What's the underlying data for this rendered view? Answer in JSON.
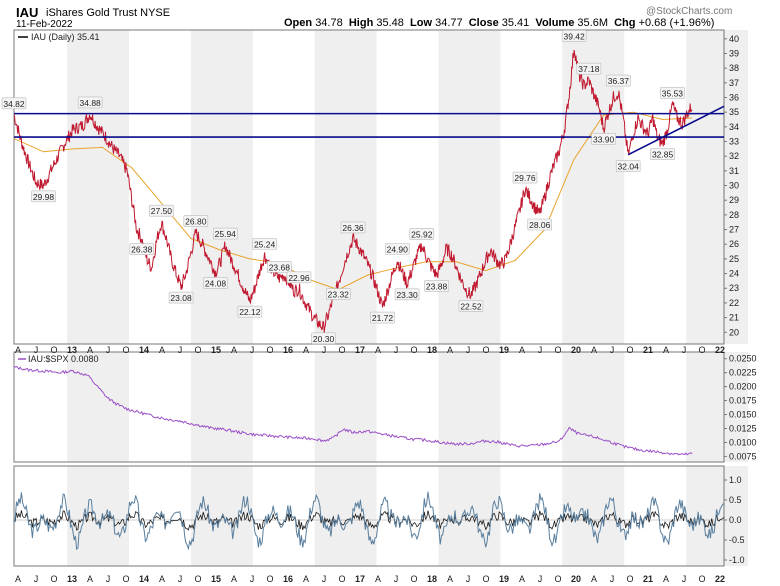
{
  "header": {
    "symbol": "IAU",
    "name": "iShares Gold Trust",
    "exchange": "NYSE",
    "date": "11-Feb-2022",
    "watermark": "@StockCharts.com",
    "open_label": "Open",
    "open": "34.78",
    "high_label": "High",
    "high": "35.48",
    "low_label": "Low",
    "low": "34.77",
    "close_label": "Close",
    "close": "35.41",
    "volume_label": "Volume",
    "volume": "35.6M",
    "chg_label": "Chg",
    "chg": "+0.68 (+1.96%)"
  },
  "chart_data": [
    {
      "type": "line",
      "panel": "price",
      "legend": "IAU (Daily) 35.41",
      "ylim": [
        19.2,
        40.6
      ],
      "y_ticks": [
        20,
        21,
        22,
        23,
        24,
        25,
        26,
        27,
        28,
        29,
        30,
        31,
        32,
        33,
        34,
        35,
        36,
        37,
        38,
        39,
        40
      ],
      "x_ticks": [
        "A",
        "J",
        "O",
        "13",
        "A",
        "J",
        "O",
        "14",
        "A",
        "J",
        "O",
        "15",
        "A",
        "J",
        "O",
        "16",
        "A",
        "J",
        "O",
        "17",
        "A",
        "J",
        "O",
        "18",
        "A",
        "J",
        "O",
        "19",
        "A",
        "J",
        "O",
        "20",
        "A",
        "J",
        "O",
        "21",
        "A",
        "J",
        "O",
        "22"
      ],
      "price_series": [
        [
          0,
          34.82
        ],
        [
          3,
          33
        ],
        [
          6,
          31.5
        ],
        [
          9,
          30.2
        ],
        [
          12,
          29.98
        ],
        [
          15,
          31
        ],
        [
          18,
          32
        ],
        [
          21,
          33
        ],
        [
          24,
          33.8
        ],
        [
          28,
          34.1
        ],
        [
          31,
          34.88
        ],
        [
          34,
          34
        ],
        [
          37,
          33.4
        ],
        [
          40,
          32.6
        ],
        [
          43,
          32
        ],
        [
          46,
          31
        ],
        [
          48,
          29
        ],
        [
          50,
          27
        ],
        [
          52,
          26.38
        ],
        [
          54,
          25
        ],
        [
          56,
          24.4
        ],
        [
          58,
          26.2
        ],
        [
          60,
          27.5
        ],
        [
          62,
          26.4
        ],
        [
          64,
          25
        ],
        [
          66,
          24
        ],
        [
          68,
          23.08
        ],
        [
          70,
          24
        ],
        [
          72,
          25.4
        ],
        [
          74,
          26.8
        ],
        [
          76,
          26.2
        ],
        [
          78,
          25.5
        ],
        [
          80,
          24.8
        ],
        [
          82,
          24.08
        ],
        [
          84,
          24.8
        ],
        [
          86,
          25.94
        ],
        [
          88,
          25.1
        ],
        [
          90,
          24.4
        ],
        [
          92,
          23.6
        ],
        [
          94,
          22.8
        ],
        [
          96,
          22.12
        ],
        [
          98,
          23
        ],
        [
          100,
          24.2
        ],
        [
          102,
          25.24
        ],
        [
          104,
          24.6
        ],
        [
          106,
          24
        ],
        [
          108,
          23.68
        ],
        [
          110,
          23.9
        ],
        [
          112,
          23.4
        ],
        [
          114,
          22.8
        ],
        [
          116,
          22.96
        ],
        [
          118,
          22.2
        ],
        [
          120,
          21.6
        ],
        [
          122,
          21
        ],
        [
          124,
          20.6
        ],
        [
          126,
          20.3
        ],
        [
          128,
          21.2
        ],
        [
          130,
          22.3
        ],
        [
          132,
          23.32
        ],
        [
          134,
          24.5
        ],
        [
          136,
          25.5
        ],
        [
          138,
          26.36
        ],
        [
          140,
          25.9
        ],
        [
          142,
          25.3
        ],
        [
          144,
          24.6
        ],
        [
          146,
          23.8
        ],
        [
          148,
          22.8
        ],
        [
          150,
          21.72
        ],
        [
          152,
          22.8
        ],
        [
          154,
          23.9
        ],
        [
          156,
          24.9
        ],
        [
          158,
          24.1
        ],
        [
          160,
          23.3
        ],
        [
          162,
          24.2
        ],
        [
          164,
          25.2
        ],
        [
          166,
          25.92
        ],
        [
          168,
          25.1
        ],
        [
          170,
          24.4
        ],
        [
          172,
          23.88
        ],
        [
          174,
          24.6
        ],
        [
          176,
          25.7
        ],
        [
          178,
          25.3
        ],
        [
          180,
          24.5
        ],
        [
          182,
          23.6
        ],
        [
          184,
          22.9
        ],
        [
          186,
          22.52
        ],
        [
          188,
          23.2
        ],
        [
          190,
          24
        ],
        [
          192,
          24.9
        ],
        [
          194,
          25.6
        ],
        [
          196,
          25
        ],
        [
          198,
          24.6
        ],
        [
          200,
          24.9
        ],
        [
          202,
          26
        ],
        [
          204,
          27.2
        ],
        [
          206,
          28.4
        ],
        [
          208,
          29.76
        ],
        [
          210,
          29.2
        ],
        [
          212,
          28.5
        ],
        [
          214,
          28.06
        ],
        [
          216,
          29.2
        ],
        [
          218,
          30.5
        ],
        [
          220,
          31.5
        ],
        [
          222,
          32.4
        ],
        [
          224,
          33.8
        ],
        [
          226,
          36.2
        ],
        [
          228,
          39.42
        ],
        [
          230,
          37.5
        ],
        [
          232,
          36.8
        ],
        [
          234,
          37.18
        ],
        [
          236,
          36.2
        ],
        [
          238,
          35.4
        ],
        [
          240,
          33.9
        ],
        [
          242,
          35
        ],
        [
          244,
          36
        ],
        [
          246,
          36.37
        ],
        [
          248,
          34.5
        ],
        [
          250,
          32.04
        ],
        [
          252,
          33.5
        ],
        [
          254,
          34.6
        ],
        [
          256,
          34
        ],
        [
          258,
          33.5
        ],
        [
          260,
          34.6
        ],
        [
          262,
          33.2
        ],
        [
          264,
          32.85
        ],
        [
          266,
          33.8
        ],
        [
          268,
          35.53
        ],
        [
          270,
          34.6
        ],
        [
          272,
          34.2
        ],
        [
          274,
          34.9
        ],
        [
          276,
          35.41
        ]
      ],
      "ma_series": [
        [
          0,
          33.2
        ],
        [
          12,
          32.3
        ],
        [
          24,
          32.5
        ],
        [
          36,
          32.6
        ],
        [
          48,
          31.2
        ],
        [
          60,
          28.8
        ],
        [
          72,
          26.4
        ],
        [
          84,
          25.6
        ],
        [
          96,
          25
        ],
        [
          108,
          24.7
        ],
        [
          120,
          23.6
        ],
        [
          132,
          22.9
        ],
        [
          144,
          23.9
        ],
        [
          156,
          24.4
        ],
        [
          168,
          24.8
        ],
        [
          180,
          24.8
        ],
        [
          192,
          24.2
        ],
        [
          204,
          24.9
        ],
        [
          216,
          27
        ],
        [
          228,
          31.8
        ],
        [
          240,
          34.8
        ],
        [
          252,
          35
        ],
        [
          264,
          34.5
        ],
        [
          276,
          34.6
        ]
      ],
      "annotations": [
        {
          "label": "34.82",
          "x": 0,
          "y": 34.82,
          "pos": "above"
        },
        {
          "label": "29.98",
          "x": 12,
          "y": 29.98,
          "pos": "below"
        },
        {
          "label": "34.88",
          "x": 31,
          "y": 34.88,
          "pos": "above"
        },
        {
          "label": "26.38",
          "x": 52,
          "y": 26.38,
          "pos": "below"
        },
        {
          "label": "27.50",
          "x": 60,
          "y": 27.5,
          "pos": "above"
        },
        {
          "label": "23.08",
          "x": 68,
          "y": 23.08,
          "pos": "below"
        },
        {
          "label": "26.80",
          "x": 74,
          "y": 26.8,
          "pos": "above"
        },
        {
          "label": "24.08",
          "x": 82,
          "y": 24.08,
          "pos": "below"
        },
        {
          "label": "25.94",
          "x": 86,
          "y": 25.94,
          "pos": "above"
        },
        {
          "label": "22.12",
          "x": 96,
          "y": 22.12,
          "pos": "below"
        },
        {
          "label": "25.24",
          "x": 102,
          "y": 25.24,
          "pos": "above"
        },
        {
          "label": "23.68",
          "x": 108,
          "y": 23.68,
          "pos": "above"
        },
        {
          "label": "22.96",
          "x": 116,
          "y": 22.96,
          "pos": "above"
        },
        {
          "label": "20.30",
          "x": 126,
          "y": 20.3,
          "pos": "below"
        },
        {
          "label": "23.32",
          "x": 132,
          "y": 23.32,
          "pos": "below"
        },
        {
          "label": "26.36",
          "x": 138,
          "y": 26.36,
          "pos": "above"
        },
        {
          "label": "21.72",
          "x": 150,
          "y": 21.72,
          "pos": "below"
        },
        {
          "label": "24.90",
          "x": 156,
          "y": 24.9,
          "pos": "above"
        },
        {
          "label": "23.30",
          "x": 160,
          "y": 23.3,
          "pos": "below"
        },
        {
          "label": "25.92",
          "x": 166,
          "y": 25.92,
          "pos": "above"
        },
        {
          "label": "23.88",
          "x": 172,
          "y": 23.88,
          "pos": "below"
        },
        {
          "label": "22.52",
          "x": 186,
          "y": 22.52,
          "pos": "below"
        },
        {
          "label": "29.76",
          "x": 208,
          "y": 29.76,
          "pos": "above"
        },
        {
          "label": "28.06",
          "x": 214,
          "y": 28.06,
          "pos": "below"
        },
        {
          "label": "39.42",
          "x": 228,
          "y": 39.42,
          "pos": "above"
        },
        {
          "label": "37.18",
          "x": 234,
          "y": 37.18,
          "pos": "above"
        },
        {
          "label": "33.90",
          "x": 240,
          "y": 33.9,
          "pos": "below"
        },
        {
          "label": "36.37",
          "x": 246,
          "y": 36.37,
          "pos": "above"
        },
        {
          "label": "32.04",
          "x": 250,
          "y": 32.04,
          "pos": "below"
        },
        {
          "label": "32.85",
          "x": 264,
          "y": 32.85,
          "pos": "below"
        },
        {
          "label": "35.53",
          "x": 268,
          "y": 35.53,
          "pos": "above"
        }
      ],
      "trendlines": [
        {
          "from": [
            0,
            34.9
          ],
          "to": [
            289,
            34.9
          ]
        },
        {
          "from": [
            0,
            33.3
          ],
          "to": [
            289,
            33.3
          ]
        },
        {
          "from": [
            250,
            32.1
          ],
          "to": [
            289,
            35.4
          ]
        }
      ],
      "colors": {
        "price": "#c0182f",
        "ma": "#e8a42c",
        "trend": "#0a0a8c",
        "shade": "#efefef"
      }
    },
    {
      "type": "line",
      "panel": "ratio",
      "legend": "IAU:$SPX 0.0080",
      "ylim": [
        0.0065,
        0.0262
      ],
      "y_ticks": [
        "0.0075",
        "0.0100",
        "0.0125",
        "0.0150",
        "0.0175",
        "0.0200",
        "0.0225",
        "0.0250"
      ],
      "series": [
        [
          0,
          0.0235
        ],
        [
          6,
          0.023
        ],
        [
          12,
          0.0228
        ],
        [
          18,
          0.0225
        ],
        [
          24,
          0.0228
        ],
        [
          30,
          0.022
        ],
        [
          34,
          0.02
        ],
        [
          38,
          0.018
        ],
        [
          42,
          0.0168
        ],
        [
          46,
          0.016
        ],
        [
          50,
          0.0155
        ],
        [
          56,
          0.0148
        ],
        [
          62,
          0.0142
        ],
        [
          68,
          0.0138
        ],
        [
          74,
          0.0132
        ],
        [
          80,
          0.0126
        ],
        [
          86,
          0.0123
        ],
        [
          92,
          0.0118
        ],
        [
          98,
          0.0114
        ],
        [
          104,
          0.0112
        ],
        [
          110,
          0.011
        ],
        [
          116,
          0.0108
        ],
        [
          122,
          0.0107
        ],
        [
          126,
          0.0103
        ],
        [
          130,
          0.0108
        ],
        [
          134,
          0.0124
        ],
        [
          138,
          0.0118
        ],
        [
          144,
          0.012
        ],
        [
          150,
          0.0115
        ],
        [
          156,
          0.011
        ],
        [
          162,
          0.0106
        ],
        [
          168,
          0.0104
        ],
        [
          174,
          0.01
        ],
        [
          180,
          0.0097
        ],
        [
          186,
          0.0098
        ],
        [
          192,
          0.0103
        ],
        [
          198,
          0.01
        ],
        [
          204,
          0.0094
        ],
        [
          210,
          0.0094
        ],
        [
          216,
          0.0097
        ],
        [
          222,
          0.0102
        ],
        [
          226,
          0.0125
        ],
        [
          230,
          0.0115
        ],
        [
          236,
          0.011
        ],
        [
          242,
          0.0102
        ],
        [
          248,
          0.0093
        ],
        [
          254,
          0.0087
        ],
        [
          260,
          0.0084
        ],
        [
          266,
          0.0081
        ],
        [
          272,
          0.0078
        ],
        [
          276,
          0.008
        ]
      ],
      "color": "#9b4fc7"
    },
    {
      "type": "line",
      "panel": "oscillator",
      "ylim": [
        -1.15,
        1.35
      ],
      "y_ticks": [
        "-1.0",
        "-0.5",
        "0.0",
        "0.5",
        "1.0"
      ],
      "colors": {
        "fast": "#5a7f9e",
        "slow": "#1a1a1a"
      }
    }
  ]
}
